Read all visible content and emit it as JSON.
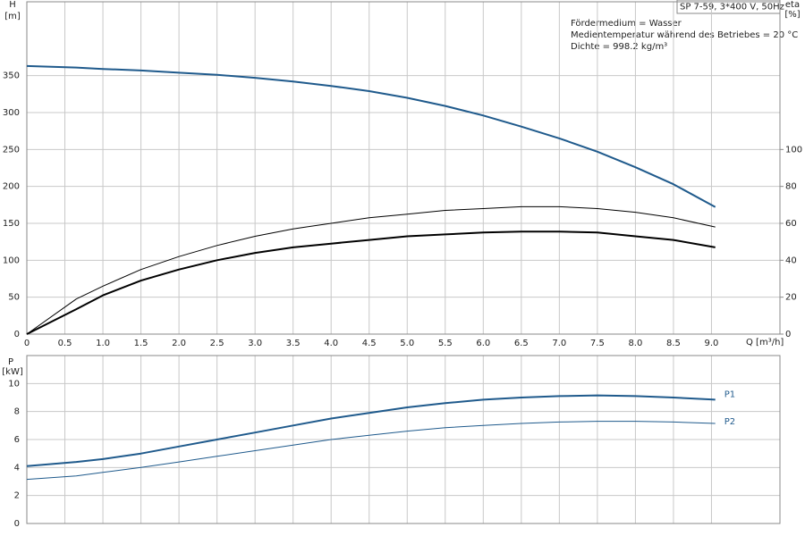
{
  "chart_data": [
    {
      "type": "line",
      "y_label": "H",
      "y_unit": "[m]",
      "y2_label": "eta",
      "y2_unit": "[%]",
      "x_label": "Q [m³/h]",
      "info_box": "SP 7-59, 3*400 V, 50Hz",
      "notes": [
        "Fördermedium = Wasser",
        "Medientemperatur während des Betriebes = 20 °C",
        "Dichte = 998.2 kg/m³"
      ],
      "x": [
        0,
        0.65,
        1.0,
        1.5,
        2.0,
        2.5,
        3.0,
        3.5,
        4.0,
        4.5,
        5.0,
        5.5,
        6.0,
        6.5,
        7.0,
        7.5,
        8.0,
        8.5,
        9.05
      ],
      "xlim": [
        0,
        9.9
      ],
      "xticks": [
        0,
        0.5,
        {
          "value": 1,
          "label": "1.0"
        },
        1.5,
        {
          "value": 2,
          "label": "2.0"
        },
        2.5,
        {
          "value": 3,
          "label": "3.0"
        },
        3.5,
        {
          "value": 4,
          "label": "4.0"
        },
        4.5,
        {
          "value": 5,
          "label": "5.0"
        },
        5.5,
        {
          "value": 6,
          "label": "6.0"
        },
        6.5,
        {
          "value": 7,
          "label": "7.0"
        },
        7.5,
        {
          "value": 8,
          "label": "8.0"
        },
        8.5,
        {
          "value": 9,
          "label": "9.0"
        }
      ],
      "ylim": [
        0,
        450
      ],
      "yticks": [
        0,
        50,
        100,
        150,
        200,
        250,
        300,
        350
      ],
      "y2lim": [
        0,
        180
      ],
      "y2ticks": [
        0,
        20,
        40,
        60,
        80,
        100
      ],
      "grid": true,
      "series": [
        {
          "color": "#1f5a8c",
          "linewidth": 2,
          "values": [
            363,
            361,
            359,
            357,
            354,
            351,
            347,
            342,
            336,
            329,
            320,
            309,
            296,
            281,
            265,
            247,
            226,
            203,
            172
          ]
        },
        {
          "color": "#000000",
          "linewidth": 1,
          "axis": "y2",
          "values": [
            0,
            19,
            26,
            35,
            42,
            48,
            53,
            57,
            60,
            63,
            65,
            67,
            68,
            69,
            69,
            68,
            66,
            63,
            58
          ]
        },
        {
          "color": "#000000",
          "linewidth": 2,
          "axis": "y2",
          "values": [
            0,
            13.5,
            21,
            29,
            35,
            40,
            44,
            47,
            49,
            51,
            53,
            54,
            55,
            55.5,
            55.5,
            55,
            53,
            51,
            47
          ]
        }
      ]
    },
    {
      "type": "line",
      "y_label": "P",
      "y_unit": "[kW]",
      "x": [
        0,
        0.65,
        1.0,
        1.5,
        2.0,
        2.5,
        3.0,
        3.5,
        4.0,
        4.5,
        5.0,
        5.5,
        6.0,
        6.5,
        7.0,
        7.5,
        8.0,
        8.5,
        9.05
      ],
      "xlim": [
        0,
        9.9
      ],
      "xticks": [
        0,
        0.5,
        1,
        1.5,
        2,
        2.5,
        3,
        3.5,
        4,
        4.5,
        5,
        5.5,
        6,
        6.5,
        7,
        7.5,
        8,
        8.5,
        9
      ],
      "ylim": [
        0,
        12
      ],
      "yticks": [
        0,
        2,
        4,
        6,
        8,
        10
      ],
      "grid": true,
      "series": [
        {
          "name": "P1",
          "color": "#1f5a8c",
          "linewidth": 2,
          "values": [
            4.1,
            4.4,
            4.6,
            5.0,
            5.5,
            6.0,
            6.5,
            7.0,
            7.5,
            7.9,
            8.3,
            8.6,
            8.85,
            9.0,
            9.1,
            9.15,
            9.1,
            9.0,
            8.85
          ]
        },
        {
          "name": "P2",
          "color": "#1f5a8c",
          "linewidth": 1,
          "values": [
            3.15,
            3.4,
            3.65,
            4.0,
            4.4,
            4.8,
            5.2,
            5.6,
            6.0,
            6.3,
            6.6,
            6.85,
            7.0,
            7.15,
            7.25,
            7.3,
            7.3,
            7.25,
            7.15
          ]
        }
      ]
    }
  ]
}
